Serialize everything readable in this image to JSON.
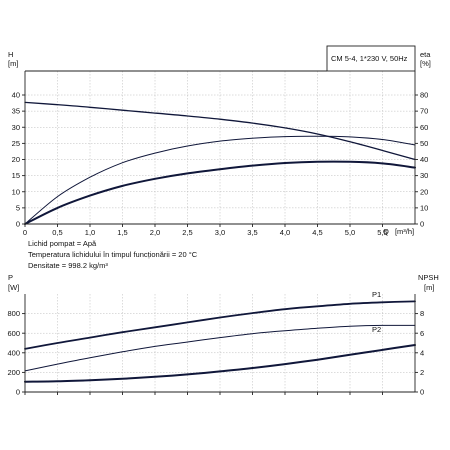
{
  "chart_data": [
    {
      "type": "line",
      "title": "CM 5-4, 1*230 V, 50Hz",
      "xlabel": "Q [m³/h]",
      "x_tick_labels": [
        "0",
        "0,5",
        "1,0",
        "1,5",
        "2,0",
        "2,5",
        "3,0",
        "3,5",
        "4,0",
        "4,5",
        "5,0",
        "5,5"
      ],
      "xlim": [
        0,
        6
      ],
      "x_label_prefix": "Q",
      "x_label_unit": "[m³/h]",
      "y_left": {
        "label": "H",
        "unit": "[m]",
        "ticks": [
          0,
          5,
          10,
          15,
          20,
          25,
          30,
          35,
          40
        ],
        "lim": [
          0,
          40
        ]
      },
      "y_right": {
        "label": "eta",
        "unit": "[%]",
        "ticks": [
          0,
          10,
          20,
          30,
          40,
          50,
          60,
          70,
          80
        ],
        "lim": [
          0,
          80
        ]
      },
      "grid": true,
      "series": [
        {
          "axis": "left",
          "x": [
            0,
            0.5,
            1,
            1.5,
            2,
            2.5,
            3,
            3.5,
            4,
            4.5,
            5,
            5.5,
            6
          ],
          "y": [
            37.7,
            37.0,
            36.2,
            35.3,
            34.4,
            33.5,
            32.5,
            31.3,
            29.8,
            27.9,
            25.5,
            22.8,
            20.0
          ]
        },
        {
          "axis": "left",
          "x": [
            0,
            0.5,
            1,
            1.5,
            2,
            2.5,
            3,
            3.5,
            4,
            4.5,
            5,
            5.5,
            6
          ],
          "y": [
            0,
            8.5,
            14.5,
            19.0,
            22.0,
            24.2,
            25.7,
            26.6,
            27.1,
            27.2,
            27.0,
            26.2,
            24.5
          ]
        },
        {
          "axis": "left",
          "x": [
            0,
            0.5,
            1,
            1.5,
            2,
            2.5,
            3,
            3.5,
            4,
            4.5,
            5,
            5.5,
            6
          ],
          "y": [
            0,
            5.0,
            8.8,
            11.8,
            14.0,
            15.7,
            17.0,
            18.1,
            18.9,
            19.3,
            19.3,
            18.8,
            17.5
          ]
        }
      ]
    },
    {
      "type": "line",
      "xlim": [
        0,
        6
      ],
      "y_left": {
        "label": "P",
        "unit": "[W]",
        "ticks": [
          0,
          200,
          400,
          600,
          800
        ],
        "lim": [
          0,
          1000
        ]
      },
      "y_right": {
        "label": "NPSH",
        "unit": "[m]",
        "ticks": [
          0,
          2,
          4,
          6,
          8
        ],
        "lim": [
          0,
          10
        ]
      },
      "grid": true,
      "series": [
        {
          "name": "P1",
          "axis": "left",
          "x": [
            0,
            0.5,
            1,
            1.5,
            2,
            2.5,
            3,
            3.5,
            4,
            4.5,
            5,
            5.5,
            6
          ],
          "y": [
            440,
            500,
            555,
            610,
            660,
            710,
            760,
            805,
            845,
            875,
            900,
            915,
            925
          ]
        },
        {
          "name": "P2",
          "axis": "left",
          "x": [
            0,
            0.5,
            1,
            1.5,
            2,
            2.5,
            3,
            3.5,
            4,
            4.5,
            5,
            5.5,
            6
          ],
          "y": [
            215,
            285,
            350,
            410,
            465,
            510,
            555,
            595,
            625,
            650,
            670,
            680,
            680
          ]
        },
        {
          "axis": "right",
          "x": [
            0,
            0.5,
            1,
            1.5,
            2,
            2.5,
            3,
            3.5,
            4,
            4.5,
            5,
            5.5,
            6
          ],
          "y": [
            1.05,
            1.1,
            1.2,
            1.35,
            1.55,
            1.8,
            2.1,
            2.45,
            2.85,
            3.3,
            3.8,
            4.3,
            4.8
          ]
        }
      ]
    }
  ],
  "notes": [
    "Lichid pompat = Apă",
    "Temperatura lichidului în timpul funcționării = 20 °C",
    "Densitate = 998.2 kg/m³"
  ]
}
